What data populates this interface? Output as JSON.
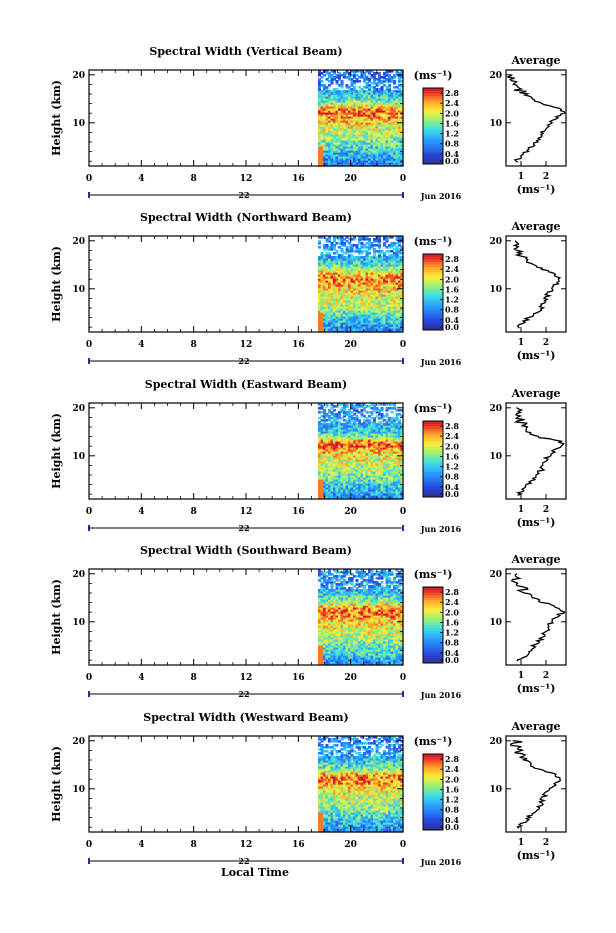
{
  "figure": {
    "x_label": "Local Time",
    "day_label": "22",
    "month_label": "Jun 2016",
    "colorbar_unit": "(ms⁻¹)",
    "avg_unit": "(ms⁻¹)",
    "avg_title": "Average",
    "y_label": "Height (km)"
  },
  "chart_data": [
    {
      "type": "heatmap",
      "title": "Spectral Width (Vertical Beam)",
      "xlabel": "",
      "ylabel": "Height (km)",
      "x_ticks": [
        "0",
        "4",
        "8",
        "12",
        "16",
        "20",
        "0"
      ],
      "xlim": [
        0,
        24
      ],
      "y_ticks": [
        "10",
        "20"
      ],
      "ylim": [
        1,
        21
      ],
      "data_start_hour": 17.5,
      "colorbar_ticks": [
        "0.0",
        "0.4",
        "0.8",
        "1.2",
        "1.6",
        "2.0",
        "2.4",
        "2.8"
      ],
      "colorbar_range": [
        0,
        3.0
      ],
      "average_profile": {
        "title": "Average",
        "xlabel": "(ms⁻¹)",
        "x_ticks": [
          "1",
          "2"
        ],
        "xlim": [
          0.4,
          2.8
        ],
        "y_ticks": [
          "10",
          "20"
        ],
        "heights": [
          2,
          3,
          4,
          5,
          6,
          7,
          8,
          9,
          10,
          11,
          12,
          13,
          14,
          15,
          16,
          17,
          18,
          19,
          20
        ],
        "values": [
          0.8,
          1.0,
          1.2,
          1.4,
          1.6,
          1.7,
          1.9,
          2.0,
          2.2,
          2.4,
          2.7,
          2.5,
          1.8,
          1.4,
          1.2,
          0.9,
          0.8,
          0.7,
          0.6
        ]
      }
    },
    {
      "type": "heatmap",
      "title": "Spectral Width (Northward Beam)",
      "xlabel": "",
      "ylabel": "Height (km)",
      "x_ticks": [
        "0",
        "4",
        "8",
        "12",
        "16",
        "20",
        "0"
      ],
      "xlim": [
        0,
        24
      ],
      "y_ticks": [
        "10",
        "20"
      ],
      "ylim": [
        1,
        21
      ],
      "data_start_hour": 17.5,
      "colorbar_ticks": [
        "0.0",
        "0.4",
        "0.8",
        "1.2",
        "1.6",
        "2.0",
        "2.4",
        "2.8"
      ],
      "colorbar_range": [
        0,
        3.0
      ],
      "average_profile": {
        "title": "Average",
        "xlabel": "(ms⁻¹)",
        "x_ticks": [
          "1",
          "2"
        ],
        "xlim": [
          0.4,
          2.8
        ],
        "y_ticks": [
          "10",
          "20"
        ],
        "heights": [
          2,
          3,
          4,
          5,
          6,
          7,
          8,
          9,
          10,
          11,
          12,
          13,
          14,
          15,
          16,
          17,
          18,
          19,
          20
        ],
        "values": [
          0.9,
          1.1,
          1.3,
          1.6,
          1.8,
          1.9,
          2.0,
          2.1,
          2.2,
          2.4,
          2.6,
          2.4,
          1.9,
          1.5,
          1.2,
          1.0,
          0.9,
          0.8,
          0.8
        ]
      }
    },
    {
      "type": "heatmap",
      "title": "Spectral Width (Eastward Beam)",
      "xlabel": "",
      "ylabel": "Height (km)",
      "x_ticks": [
        "0",
        "4",
        "8",
        "12",
        "16",
        "20",
        "0"
      ],
      "xlim": [
        0,
        24
      ],
      "y_ticks": [
        "10",
        "20"
      ],
      "ylim": [
        1,
        21
      ],
      "data_start_hour": 17.5,
      "colorbar_ticks": [
        "0.0",
        "0.4",
        "0.8",
        "1.2",
        "1.6",
        "2.0",
        "2.4",
        "2.8"
      ],
      "colorbar_range": [
        0,
        3.0
      ],
      "average_profile": {
        "title": "Average",
        "xlabel": "(ms⁻¹)",
        "x_ticks": [
          "1",
          "2"
        ],
        "xlim": [
          0.4,
          2.8
        ],
        "y_ticks": [
          "10",
          "20"
        ],
        "heights": [
          2,
          3,
          4,
          5,
          6,
          7,
          8,
          9,
          10,
          11,
          12,
          13,
          14,
          15,
          16,
          17,
          18,
          19,
          20
        ],
        "values": [
          0.9,
          1.1,
          1.3,
          1.5,
          1.6,
          1.8,
          1.9,
          2.0,
          2.1,
          2.3,
          2.7,
          2.6,
          1.6,
          1.3,
          1.1,
          1.0,
          0.9,
          0.8,
          0.9
        ]
      }
    },
    {
      "type": "heatmap",
      "title": "Spectral Width (Southward Beam)",
      "xlabel": "",
      "ylabel": "Height (km)",
      "x_ticks": [
        "0",
        "4",
        "8",
        "12",
        "16",
        "20",
        "0"
      ],
      "xlim": [
        0,
        24
      ],
      "y_ticks": [
        "10",
        "20"
      ],
      "ylim": [
        1,
        21
      ],
      "data_start_hour": 17.5,
      "colorbar_ticks": [
        "0.0",
        "0.4",
        "0.8",
        "1.2",
        "1.6",
        "2.0",
        "2.4",
        "2.8"
      ],
      "colorbar_range": [
        0,
        3.0
      ],
      "average_profile": {
        "title": "Average",
        "xlabel": "(ms⁻¹)",
        "x_ticks": [
          "1",
          "2"
        ],
        "xlim": [
          0.4,
          2.8
        ],
        "y_ticks": [
          "10",
          "20"
        ],
        "heights": [
          2,
          3,
          4,
          5,
          6,
          7,
          8,
          9,
          10,
          11,
          12,
          13,
          14,
          15,
          16,
          17,
          18,
          19,
          20
        ],
        "values": [
          0.9,
          1.2,
          1.4,
          1.5,
          1.7,
          1.9,
          2.0,
          2.1,
          2.2,
          2.4,
          2.7,
          2.5,
          1.9,
          1.5,
          1.2,
          1.0,
          0.9,
          0.8,
          0.8
        ]
      }
    },
    {
      "type": "heatmap",
      "title": "Spectral Width (Westward Beam)",
      "xlabel": "Local Time",
      "ylabel": "Height (km)",
      "x_ticks": [
        "0",
        "4",
        "8",
        "12",
        "16",
        "20",
        "0"
      ],
      "xlim": [
        0,
        24
      ],
      "y_ticks": [
        "10",
        "20"
      ],
      "ylim": [
        1,
        21
      ],
      "data_start_hour": 17.5,
      "colorbar_ticks": [
        "0.0",
        "0.4",
        "0.8",
        "1.2",
        "1.6",
        "2.0",
        "2.4",
        "2.8"
      ],
      "colorbar_range": [
        0,
        3.0
      ],
      "average_profile": {
        "title": "Average",
        "xlabel": "(ms⁻¹)",
        "x_ticks": [
          "1",
          "2"
        ],
        "xlim": [
          0.4,
          2.8
        ],
        "y_ticks": [
          "10",
          "20"
        ],
        "heights": [
          2,
          3,
          4,
          5,
          6,
          7,
          8,
          9,
          10,
          11,
          12,
          13,
          14,
          15,
          16,
          17,
          18,
          19,
          20
        ],
        "values": [
          0.9,
          1.1,
          1.3,
          1.5,
          1.7,
          1.8,
          1.9,
          2.0,
          2.1,
          2.4,
          2.6,
          2.4,
          1.7,
          1.4,
          1.2,
          1.0,
          0.9,
          0.8,
          0.8
        ]
      }
    }
  ]
}
